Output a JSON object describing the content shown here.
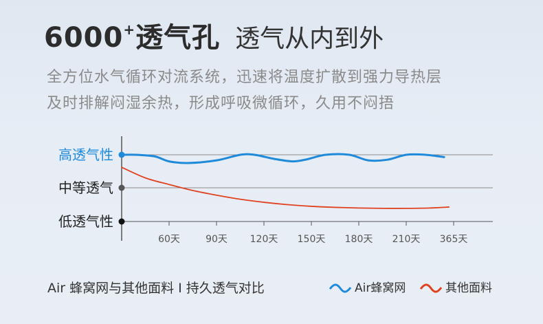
{
  "header": {
    "title_main": "6000",
    "title_sup": "+",
    "title_tail": "透气孔",
    "title_sub": "透气从内到外"
  },
  "description": {
    "line1": "全方位水气循环对流系统，迅速将温度扩散到强力导热层",
    "line2": "及时排解闷湿余热，形成呼吸微循环，久用不闷捂"
  },
  "caption": "Air 蜂窝网与其他面料 I 持久透气对比",
  "colors": {
    "blue": "#1f8ad9",
    "red": "#e0411f",
    "axis": "#555555",
    "grid": "#8c8c8c"
  },
  "chart_data": {
    "type": "line",
    "categories": [
      "60天",
      "90天",
      "120天",
      "150天",
      "180天",
      "210天",
      "365天"
    ],
    "y_levels": [
      "低透气性",
      "中等透气",
      "高透气性"
    ],
    "ylim": [
      0,
      2
    ],
    "series": [
      {
        "name": "Air蜂窝网",
        "color": "#1f8ad9",
        "x": [
          0,
          0.3,
          0.7,
          1.0,
          1.4,
          2.0,
          2.5,
          2.8,
          3.2,
          3.6,
          3.9,
          4.3,
          4.8,
          5.2,
          5.6,
          6.0,
          6.4,
          6.8
        ],
        "y": [
          2.0,
          2.1,
          1.95,
          1.8,
          1.75,
          1.83,
          2.11,
          2.08,
          1.88,
          1.8,
          1.86,
          2.1,
          2.07,
          1.83,
          1.85,
          2.15,
          2.08,
          1.93
        ]
      },
      {
        "name": "其他面料",
        "color": "#e0411f",
        "x": [
          0,
          0.5,
          1.0,
          1.5,
          2.0,
          2.5,
          3.0,
          3.5,
          4.0,
          4.5,
          5.0,
          5.5,
          6.0,
          6.5,
          6.9
        ],
        "y": [
          1.62,
          1.3,
          1.1,
          0.92,
          0.78,
          0.66,
          0.57,
          0.5,
          0.45,
          0.42,
          0.4,
          0.39,
          0.39,
          0.4,
          0.43
        ]
      }
    ],
    "grid": true
  }
}
